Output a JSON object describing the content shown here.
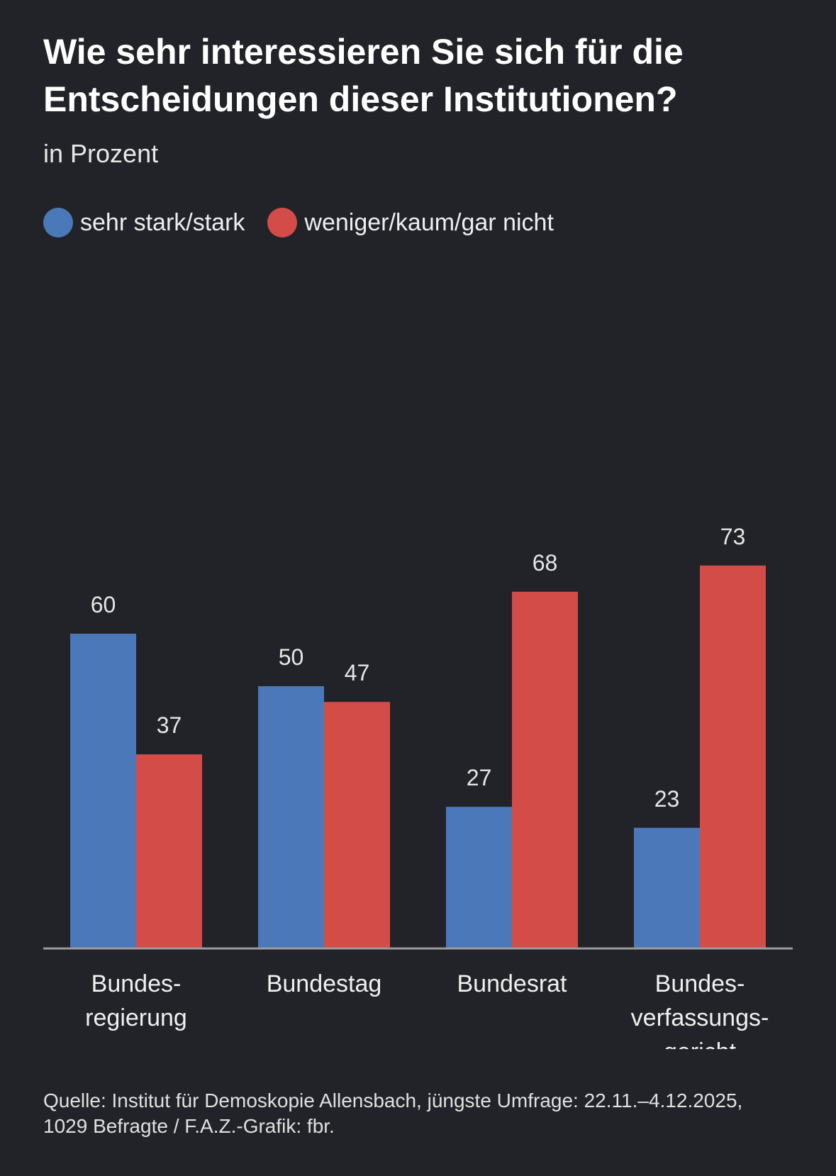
{
  "header": {
    "title": "Wie sehr interessieren Sie sich für die Entscheidungen dieser Institutionen?",
    "subtitle": "in Prozent"
  },
  "legend": {
    "items": [
      {
        "label": "sehr stark/stark",
        "color": "#4a78b8"
      },
      {
        "label": "weniger/kaum/gar nicht",
        "color": "#d44c48"
      }
    ]
  },
  "chart_data": {
    "type": "bar",
    "categories": [
      [
        "Bundes-",
        "regierung"
      ],
      [
        "Bundestag"
      ],
      [
        "Bundesrat"
      ],
      [
        "Bundes-",
        "verfassungs-",
        "gericht"
      ]
    ],
    "series": [
      {
        "name": "sehr stark/stark",
        "values": [
          60,
          50,
          27,
          23
        ],
        "color": "#4a78b8"
      },
      {
        "name": "weniger/kaum/gar nicht",
        "values": [
          37,
          47,
          68,
          73
        ],
        "color": "#d44c48"
      }
    ],
    "title": "Wie sehr interessieren Sie sich für die Entscheidungen dieser Institutionen?",
    "subtitle": "in Prozent",
    "ylim": [
      0,
      100
    ],
    "grid": false,
    "legend": "top-left",
    "data_labels": true
  },
  "footer": {
    "source_line1": "Quelle: Institut für Demoskopie Allensbach, jüngste Umfrage: 22.11.–4.12.2025,",
    "source_line2": "1029 Befragte / F.A.Z.-Grafik: fbr."
  }
}
